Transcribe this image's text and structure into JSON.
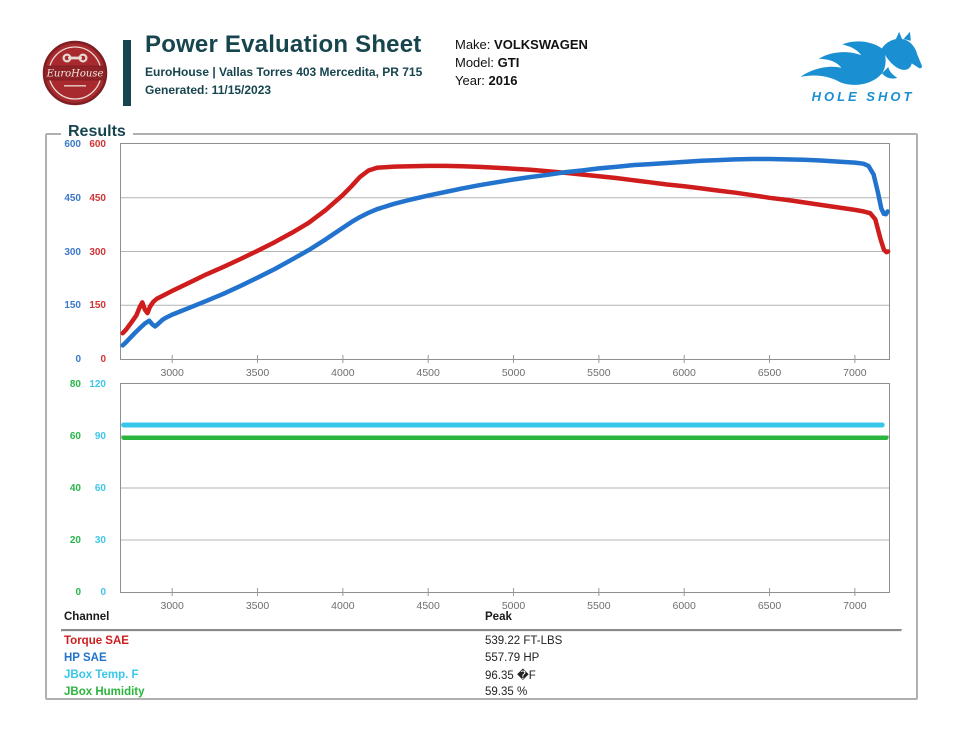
{
  "header": {
    "title": "Power Evaluation Sheet",
    "address": "EuroHouse | Vallas Torres 403 Mercedita, PR 715",
    "generated": "Generated: 11/15/2023",
    "logo_text": "EuroHouse",
    "vehicle": {
      "make_label": "Make:",
      "make": "VOLKSWAGEN",
      "model_label": "Model:",
      "model": "GTI",
      "year_label": "Year:",
      "year": "2016"
    },
    "brand": {
      "name": "HOLE SHOT",
      "color": "#1a8fd1"
    }
  },
  "results": {
    "legend": "Results",
    "table": {
      "columns": [
        "Channel",
        "Peak"
      ],
      "rows": [
        {
          "channel": "Torque SAE",
          "peak": "539.22 FT-LBS",
          "color": "#cf1d1d"
        },
        {
          "channel": "HP SAE",
          "peak": "557.79 HP",
          "color": "#2273cd"
        },
        {
          "channel": "JBox Temp. F",
          "peak": "96.35 �F",
          "color": "#38c6ea"
        },
        {
          "channel": "JBox Humidity",
          "peak": "59.35 %",
          "color": "#2ab53c"
        }
      ]
    }
  },
  "chart_data": [
    {
      "type": "line",
      "title": "Power / Torque vs RPM",
      "x_range": [
        2700,
        7200
      ],
      "x_ticks": [
        3000,
        3500,
        4000,
        4500,
        5000,
        5500,
        6000,
        6500,
        7000
      ],
      "grid": true,
      "legend_position": "none",
      "axes": [
        {
          "id": "hp",
          "color": "#3b79c9",
          "range": [
            0,
            600
          ],
          "ticks": [
            0,
            150,
            300,
            450,
            600
          ]
        },
        {
          "id": "torque",
          "color": "#cf3535",
          "range": [
            0,
            600
          ],
          "ticks": [
            0,
            150,
            300,
            450,
            600
          ]
        }
      ],
      "series": [
        {
          "name": "Torque SAE",
          "axis": "torque",
          "color": "#cf1d1d",
          "width": 4.5,
          "points": [
            [
              2710,
              72
            ],
            [
              2730,
              82
            ],
            [
              2750,
              95
            ],
            [
              2770,
              108
            ],
            [
              2790,
              122
            ],
            [
              2810,
              145
            ],
            [
              2825,
              158
            ],
            [
              2840,
              138
            ],
            [
              2855,
              128
            ],
            [
              2870,
              146
            ],
            [
              2890,
              160
            ],
            [
              2910,
              168
            ],
            [
              2950,
              178
            ],
            [
              3000,
              190
            ],
            [
              3100,
              213
            ],
            [
              3200,
              236
            ],
            [
              3300,
              257
            ],
            [
              3400,
              279
            ],
            [
              3500,
              302
            ],
            [
              3600,
              326
            ],
            [
              3700,
              352
            ],
            [
              3800,
              380
            ],
            [
              3900,
              416
            ],
            [
              4000,
              458
            ],
            [
              4050,
              482
            ],
            [
              4100,
              508
            ],
            [
              4150,
              526
            ],
            [
              4200,
              534
            ],
            [
              4300,
              537
            ],
            [
              4400,
              538
            ],
            [
              4500,
              539
            ],
            [
              4600,
              539
            ],
            [
              4700,
              538
            ],
            [
              4800,
              536
            ],
            [
              4900,
              534
            ],
            [
              5000,
              531
            ],
            [
              5100,
              528
            ],
            [
              5200,
              524
            ],
            [
              5300,
              520
            ],
            [
              5400,
              515
            ],
            [
              5500,
              510
            ],
            [
              5600,
              505
            ],
            [
              5700,
              499
            ],
            [
              5800,
              493
            ],
            [
              5900,
              487
            ],
            [
              6000,
              482
            ],
            [
              6100,
              476
            ],
            [
              6200,
              470
            ],
            [
              6300,
              464
            ],
            [
              6400,
              457
            ],
            [
              6500,
              450
            ],
            [
              6600,
              444
            ],
            [
              6700,
              437
            ],
            [
              6800,
              430
            ],
            [
              6900,
              423
            ],
            [
              7000,
              416
            ],
            [
              7050,
              412
            ],
            [
              7090,
              407
            ],
            [
              7120,
              390
            ],
            [
              7150,
              335
            ],
            [
              7170,
              305
            ],
            [
              7185,
              298
            ],
            [
              7195,
              300
            ]
          ]
        },
        {
          "name": "HP SAE",
          "axis": "hp",
          "color": "#2273cd",
          "width": 4.5,
          "points": [
            [
              2710,
              38
            ],
            [
              2730,
              47
            ],
            [
              2750,
              57
            ],
            [
              2780,
              72
            ],
            [
              2810,
              86
            ],
            [
              2840,
              99
            ],
            [
              2865,
              107
            ],
            [
              2885,
              96
            ],
            [
              2900,
              91
            ],
            [
              2920,
              99
            ],
            [
              2945,
              110
            ],
            [
              2970,
              117
            ],
            [
              3000,
              124
            ],
            [
              3100,
              143
            ],
            [
              3200,
              162
            ],
            [
              3300,
              182
            ],
            [
              3400,
              204
            ],
            [
              3500,
              227
            ],
            [
              3600,
              251
            ],
            [
              3700,
              277
            ],
            [
              3800,
              304
            ],
            [
              3900,
              334
            ],
            [
              4000,
              366
            ],
            [
              4050,
              382
            ],
            [
              4100,
              396
            ],
            [
              4150,
              408
            ],
            [
              4200,
              418
            ],
            [
              4300,
              433
            ],
            [
              4400,
              445
            ],
            [
              4500,
              456
            ],
            [
              4600,
              466
            ],
            [
              4700,
              476
            ],
            [
              4800,
              485
            ],
            [
              4900,
              493
            ],
            [
              5000,
              501
            ],
            [
              5100,
              508
            ],
            [
              5200,
              514
            ],
            [
              5300,
              521
            ],
            [
              5400,
              526
            ],
            [
              5500,
              532
            ],
            [
              5600,
              536
            ],
            [
              5700,
              541
            ],
            [
              5800,
              544
            ],
            [
              5900,
              547
            ],
            [
              6000,
              550
            ],
            [
              6100,
              553
            ],
            [
              6200,
              555
            ],
            [
              6300,
              557
            ],
            [
              6400,
              558
            ],
            [
              6500,
              558
            ],
            [
              6600,
              557
            ],
            [
              6700,
              556
            ],
            [
              6800,
              554
            ],
            [
              6900,
              551
            ],
            [
              7000,
              548
            ],
            [
              7050,
              545
            ],
            [
              7080,
              539
            ],
            [
              7110,
              515
            ],
            [
              7135,
              465
            ],
            [
              7155,
              420
            ],
            [
              7170,
              405
            ],
            [
              7182,
              404
            ],
            [
              7192,
              412
            ]
          ]
        }
      ]
    },
    {
      "type": "line",
      "title": "JBox Environment vs RPM",
      "x_range": [
        2700,
        7200
      ],
      "x_ticks": [
        3000,
        3500,
        4000,
        4500,
        5000,
        5500,
        6000,
        6500,
        7000
      ],
      "grid": true,
      "legend_position": "none",
      "axes": [
        {
          "id": "humidity",
          "color": "#2ab54a",
          "range": [
            0,
            80
          ],
          "ticks": [
            0,
            20,
            40,
            60,
            80
          ]
        },
        {
          "id": "temp",
          "color": "#3fc6e8",
          "range": [
            0,
            120
          ],
          "ticks": [
            0,
            30,
            60,
            90,
            120
          ]
        }
      ],
      "series": [
        {
          "name": "JBox Temp. F",
          "axis": "temp",
          "color": "#38c6ea",
          "width": 5,
          "points": [
            [
              2715,
              96.35
            ],
            [
              7160,
              96.35
            ]
          ]
        },
        {
          "name": "JBox Humidity",
          "axis": "humidity",
          "color": "#2ab53c",
          "width": 4.5,
          "points": [
            [
              2715,
              59.35
            ],
            [
              7185,
              59.35
            ]
          ]
        }
      ]
    }
  ]
}
